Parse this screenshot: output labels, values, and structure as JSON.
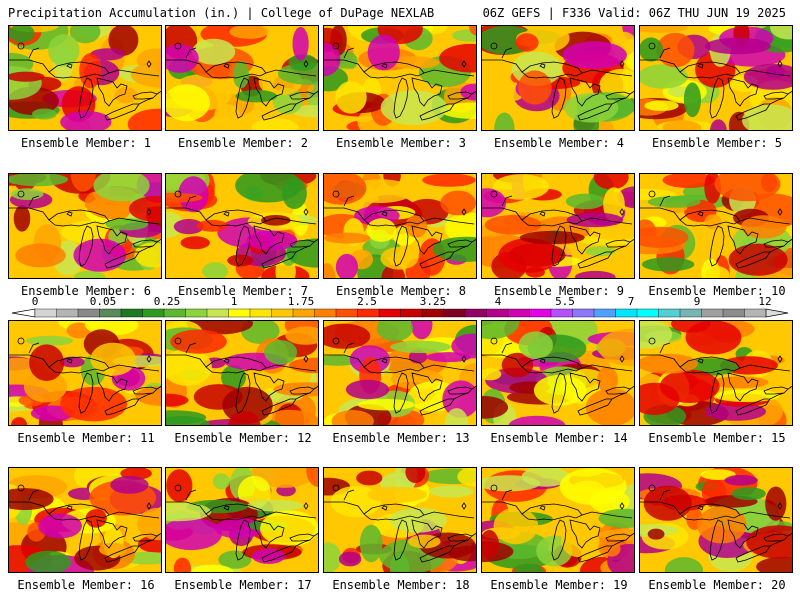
{
  "header": {
    "title": "Precipitation Accumulation (in.) | College of DuPage NEXLAB",
    "run_info": "06Z GEFS | F336 Valid: 06Z THU JUN 19 2025"
  },
  "colorbar": {
    "tick_labels": [
      "0",
      "0.05",
      "0.25",
      "1",
      "1.75",
      "2.5",
      "3.25",
      "4",
      "5.5",
      "7",
      "9",
      "12"
    ],
    "colors": [
      "#d4d4d4",
      "#b4b4b4",
      "#8a8a8a",
      "#5a8a5a",
      "#1f7a1f",
      "#2e9a1e",
      "#5cb82e",
      "#8cd43c",
      "#c8e650",
      "#ffff00",
      "#ffe600",
      "#ffc800",
      "#ffa500",
      "#ff7f00",
      "#ff5000",
      "#ff2800",
      "#e60000",
      "#c80000",
      "#a00000",
      "#800020",
      "#960064",
      "#b4008c",
      "#d200b4",
      "#e600e6",
      "#b450ff",
      "#8c78ff",
      "#50a0ff",
      "#00e6ff",
      "#00ffff",
      "#50d2d2",
      "#78b4b4",
      "#a0a0a0",
      "#8c8c8c",
      "#b4b4b4"
    ]
  },
  "palette_colors": {
    "low": "#2e9a1e",
    "mid": "#ffe600",
    "high": "#e60000",
    "extreme": "#d200b4",
    "max": "#00ffff"
  },
  "panels": [
    {
      "label": "Ensemble Member: 1"
    },
    {
      "label": "Ensemble Member: 2"
    },
    {
      "label": "Ensemble Member: 3"
    },
    {
      "label": "Ensemble Member: 4"
    },
    {
      "label": "Ensemble Member: 5"
    },
    {
      "label": "Ensemble Member: 6"
    },
    {
      "label": "Ensemble Member: 7"
    },
    {
      "label": "Ensemble Member: 8"
    },
    {
      "label": "Ensemble Member: 9"
    },
    {
      "label": "Ensemble Member: 10"
    },
    {
      "label": "Ensemble Member: 11"
    },
    {
      "label": "Ensemble Member: 12"
    },
    {
      "label": "Ensemble Member: 13"
    },
    {
      "label": "Ensemble Member: 14"
    },
    {
      "label": "Ensemble Member: 15"
    },
    {
      "label": "Ensemble Member: 16"
    },
    {
      "label": "Ensemble Member: 17"
    },
    {
      "label": "Ensemble Member: 18"
    },
    {
      "label": "Ensemble Member: 19"
    },
    {
      "label": "Ensemble Member: 20"
    }
  ]
}
